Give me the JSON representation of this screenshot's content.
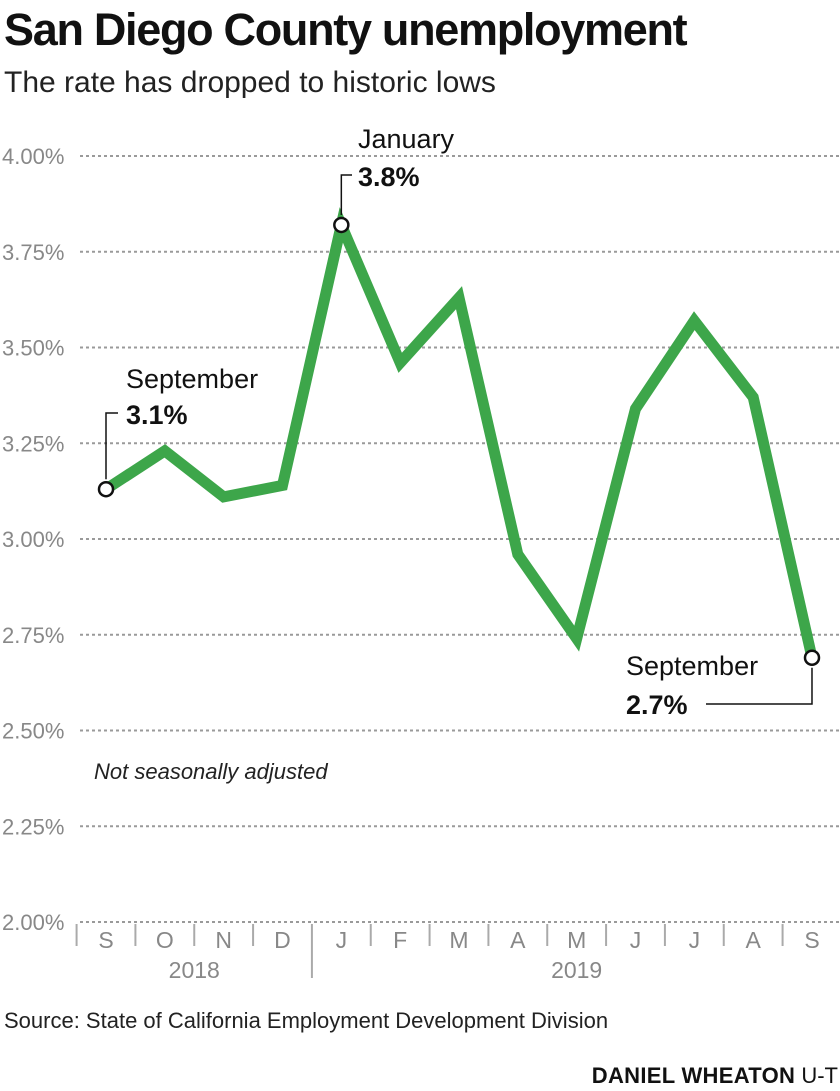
{
  "title": "San Diego County unemployment",
  "subtitle": "The rate has dropped to historic lows",
  "note": "Not seasonally adjusted",
  "source": "Source: State of California Employment Development Division",
  "credit": {
    "author": "DANIEL WHEATON",
    "org": "U-T"
  },
  "colors": {
    "line": "#3da64a",
    "grid": "#9a9a9a",
    "tick": "#888888",
    "text": "#111111"
  },
  "chart_data": {
    "type": "line",
    "title": "San Diego County unemployment",
    "subtitle": "The rate has dropped to historic lows",
    "xlabel": "",
    "ylabel": "",
    "ylim": [
      2.0,
      4.0
    ],
    "y_ticks": [
      2.0,
      2.25,
      2.5,
      2.75,
      3.0,
      3.25,
      3.5,
      3.75,
      4.0
    ],
    "y_tick_labels": [
      "2.00%",
      "2.25%",
      "2.50%",
      "2.75%",
      "3.00%",
      "3.25%",
      "3.50%",
      "3.75%",
      "4.00%"
    ],
    "grid": true,
    "categories": [
      "S",
      "O",
      "N",
      "D",
      "J",
      "F",
      "M",
      "A",
      "M",
      "J",
      "J",
      "A",
      "S"
    ],
    "year_groups": [
      {
        "label": "2018",
        "start": 0,
        "end": 3
      },
      {
        "label": "2019",
        "start": 4,
        "end": 12
      }
    ],
    "series": [
      {
        "values": [
          3.13,
          3.23,
          3.11,
          3.14,
          3.82,
          3.46,
          3.63,
          2.96,
          2.74,
          3.34,
          3.57,
          3.37,
          2.69
        ]
      }
    ],
    "annotations": [
      {
        "index": 0,
        "label": "September",
        "value_label": "3.1%"
      },
      {
        "index": 4,
        "label": "January",
        "value_label": "3.8%"
      },
      {
        "index": 12,
        "label": "September",
        "value_label": "2.7%"
      }
    ]
  }
}
